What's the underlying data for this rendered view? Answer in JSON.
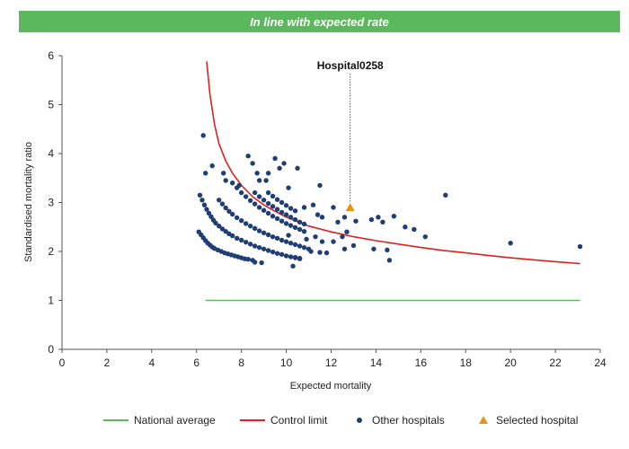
{
  "banner": {
    "text": "In line with expected rate",
    "color": "#5cb85c"
  },
  "chart_data": {
    "type": "scatter",
    "title": "",
    "xlabel": "Expected mortality",
    "ylabel": "Standardised mortality ratio",
    "xlim": [
      0,
      24
    ],
    "ylim": [
      0,
      6
    ],
    "x_ticks": [
      "0",
      "2",
      "4",
      "6",
      "8",
      "10",
      "12",
      "14",
      "16",
      "18",
      "20",
      "22",
      "24"
    ],
    "y_ticks": [
      "0",
      "1",
      "2",
      "3",
      "4",
      "5",
      "6"
    ],
    "grid": false,
    "legend_position": "bottom",
    "annotation": {
      "label": "Hospital0258",
      "x": 12.85,
      "y": 2.9
    },
    "series": [
      {
        "name": "National average",
        "kind": "line",
        "color": "#5cb85c",
        "points": [
          [
            6.4,
            1.0
          ],
          [
            23.1,
            1.0
          ]
        ]
      },
      {
        "name": "Control limit",
        "kind": "line",
        "color": "#e02020",
        "points": [
          [
            6.45,
            5.88
          ],
          [
            6.6,
            5.2
          ],
          [
            6.8,
            4.6
          ],
          [
            7.0,
            4.2
          ],
          [
            7.3,
            3.85
          ],
          [
            7.6,
            3.6
          ],
          [
            8.0,
            3.35
          ],
          [
            8.5,
            3.12
          ],
          [
            9.0,
            2.95
          ],
          [
            9.5,
            2.82
          ],
          [
            10.0,
            2.7
          ],
          [
            11.0,
            2.52
          ],
          [
            12.0,
            2.4
          ],
          [
            13.0,
            2.3
          ],
          [
            14.0,
            2.22
          ],
          [
            15.0,
            2.15
          ],
          [
            16.0,
            2.08
          ],
          [
            17.0,
            2.02
          ],
          [
            18.0,
            1.97
          ],
          [
            19.0,
            1.92
          ],
          [
            20.0,
            1.87
          ],
          [
            21.0,
            1.83
          ],
          [
            22.0,
            1.79
          ],
          [
            23.1,
            1.75
          ]
        ]
      },
      {
        "name": "Other hospitals",
        "kind": "scatter",
        "color": "#1f3e73",
        "points": [
          [
            6.1,
            2.4
          ],
          [
            6.2,
            2.34
          ],
          [
            6.3,
            2.28
          ],
          [
            6.4,
            2.22
          ],
          [
            6.5,
            2.17
          ],
          [
            6.6,
            2.13
          ],
          [
            6.7,
            2.09
          ],
          [
            6.8,
            2.06
          ],
          [
            6.95,
            2.03
          ],
          [
            7.1,
            2.0
          ],
          [
            7.25,
            1.97
          ],
          [
            7.4,
            1.95
          ],
          [
            7.55,
            1.93
          ],
          [
            7.7,
            1.91
          ],
          [
            7.85,
            1.89
          ],
          [
            8.0,
            1.87
          ],
          [
            8.15,
            1.85
          ],
          [
            8.3,
            1.84
          ],
          [
            8.5,
            1.82
          ],
          [
            6.15,
            3.15
          ],
          [
            6.25,
            3.05
          ],
          [
            6.35,
            2.95
          ],
          [
            6.45,
            2.86
          ],
          [
            6.55,
            2.78
          ],
          [
            6.65,
            2.71
          ],
          [
            6.75,
            2.64
          ],
          [
            6.85,
            2.58
          ],
          [
            7.0,
            2.52
          ],
          [
            7.15,
            2.46
          ],
          [
            7.3,
            2.41
          ],
          [
            7.45,
            2.36
          ],
          [
            7.6,
            2.32
          ],
          [
            7.8,
            2.27
          ],
          [
            8.0,
            2.23
          ],
          [
            8.2,
            2.19
          ],
          [
            8.4,
            2.15
          ],
          [
            8.6,
            2.11
          ],
          [
            8.8,
            2.08
          ],
          [
            9.0,
            2.05
          ],
          [
            9.2,
            2.02
          ],
          [
            9.4,
            1.99
          ],
          [
            9.6,
            1.96
          ],
          [
            9.8,
            1.94
          ],
          [
            10.0,
            1.91
          ],
          [
            10.2,
            1.89
          ],
          [
            10.4,
            1.87
          ],
          [
            10.6,
            1.85
          ],
          [
            7.0,
            3.05
          ],
          [
            7.15,
            2.97
          ],
          [
            7.3,
            2.89
          ],
          [
            7.45,
            2.82
          ],
          [
            7.6,
            2.76
          ],
          [
            7.8,
            2.69
          ],
          [
            8.0,
            2.63
          ],
          [
            8.2,
            2.57
          ],
          [
            8.4,
            2.52
          ],
          [
            8.6,
            2.47
          ],
          [
            8.8,
            2.42
          ],
          [
            9.0,
            2.38
          ],
          [
            9.2,
            2.34
          ],
          [
            9.4,
            2.3
          ],
          [
            9.6,
            2.27
          ],
          [
            9.8,
            2.23
          ],
          [
            10.0,
            2.2
          ],
          [
            10.2,
            2.17
          ],
          [
            10.4,
            2.14
          ],
          [
            10.6,
            2.11
          ],
          [
            10.8,
            2.08
          ],
          [
            11.0,
            2.05
          ],
          [
            7.8,
            3.3
          ],
          [
            8.0,
            3.2
          ],
          [
            8.2,
            3.12
          ],
          [
            8.4,
            3.04
          ],
          [
            8.6,
            2.97
          ],
          [
            8.8,
            2.9
          ],
          [
            9.0,
            2.84
          ],
          [
            9.2,
            2.78
          ],
          [
            9.4,
            2.72
          ],
          [
            9.6,
            2.67
          ],
          [
            9.8,
            2.62
          ],
          [
            10.0,
            2.57
          ],
          [
            10.2,
            2.53
          ],
          [
            10.4,
            2.49
          ],
          [
            10.6,
            2.45
          ],
          [
            10.8,
            2.41
          ],
          [
            8.6,
            3.2
          ],
          [
            8.8,
            3.12
          ],
          [
            9.0,
            3.05
          ],
          [
            9.2,
            2.98
          ],
          [
            9.4,
            2.92
          ],
          [
            9.6,
            2.86
          ],
          [
            9.8,
            2.8
          ],
          [
            10.0,
            2.75
          ],
          [
            10.2,
            2.7
          ],
          [
            10.4,
            2.65
          ],
          [
            10.6,
            2.6
          ],
          [
            10.8,
            2.56
          ],
          [
            9.2,
            3.2
          ],
          [
            9.4,
            3.13
          ],
          [
            9.6,
            3.06
          ],
          [
            9.8,
            3.0
          ],
          [
            10.0,
            2.94
          ],
          [
            10.2,
            2.88
          ],
          [
            10.4,
            2.83
          ],
          [
            6.3,
            4.37
          ],
          [
            6.4,
            3.6
          ],
          [
            6.7,
            3.75
          ],
          [
            7.2,
            3.6
          ],
          [
            7.3,
            3.45
          ],
          [
            7.6,
            3.4
          ],
          [
            7.9,
            3.35
          ],
          [
            8.3,
            3.95
          ],
          [
            8.5,
            3.8
          ],
          [
            8.7,
            3.6
          ],
          [
            8.8,
            3.45
          ],
          [
            9.1,
            3.45
          ],
          [
            9.2,
            3.6
          ],
          [
            9.5,
            3.9
          ],
          [
            9.7,
            3.7
          ],
          [
            9.9,
            3.8
          ],
          [
            10.1,
            3.3
          ],
          [
            10.5,
            3.7
          ],
          [
            10.8,
            2.9
          ],
          [
            11.2,
            2.95
          ],
          [
            11.4,
            2.75
          ],
          [
            11.5,
            3.35
          ],
          [
            11.6,
            2.7
          ],
          [
            12.1,
            2.9
          ],
          [
            12.3,
            2.6
          ],
          [
            12.6,
            2.7
          ],
          [
            12.7,
            2.4
          ],
          [
            13.1,
            2.62
          ],
          [
            13.8,
            2.65
          ],
          [
            14.1,
            2.7
          ],
          [
            14.3,
            2.6
          ],
          [
            14.8,
            2.72
          ],
          [
            15.3,
            2.5
          ],
          [
            15.7,
            2.45
          ],
          [
            16.2,
            2.3
          ],
          [
            17.1,
            3.15
          ],
          [
            20.0,
            2.17
          ],
          [
            23.1,
            2.1
          ],
          [
            10.9,
            2.25
          ],
          [
            11.3,
            2.3
          ],
          [
            11.6,
            2.2
          ],
          [
            12.1,
            2.2
          ],
          [
            12.5,
            2.3
          ],
          [
            12.6,
            2.05
          ],
          [
            13.0,
            2.12
          ],
          [
            13.9,
            2.05
          ],
          [
            14.5,
            2.03
          ],
          [
            14.6,
            1.82
          ],
          [
            11.1,
            2.0
          ],
          [
            11.5,
            1.98
          ],
          [
            11.8,
            1.97
          ],
          [
            10.3,
            1.7
          ],
          [
            10.4,
            1.88
          ],
          [
            10.6,
            1.86
          ],
          [
            8.6,
            1.78
          ],
          [
            8.9,
            1.77
          ],
          [
            10.1,
            2.33
          ]
        ]
      },
      {
        "name": "Selected hospital",
        "kind": "scatter",
        "marker": "triangle",
        "color": "#e8921a",
        "points": [
          [
            12.85,
            2.9
          ]
        ]
      }
    ]
  }
}
